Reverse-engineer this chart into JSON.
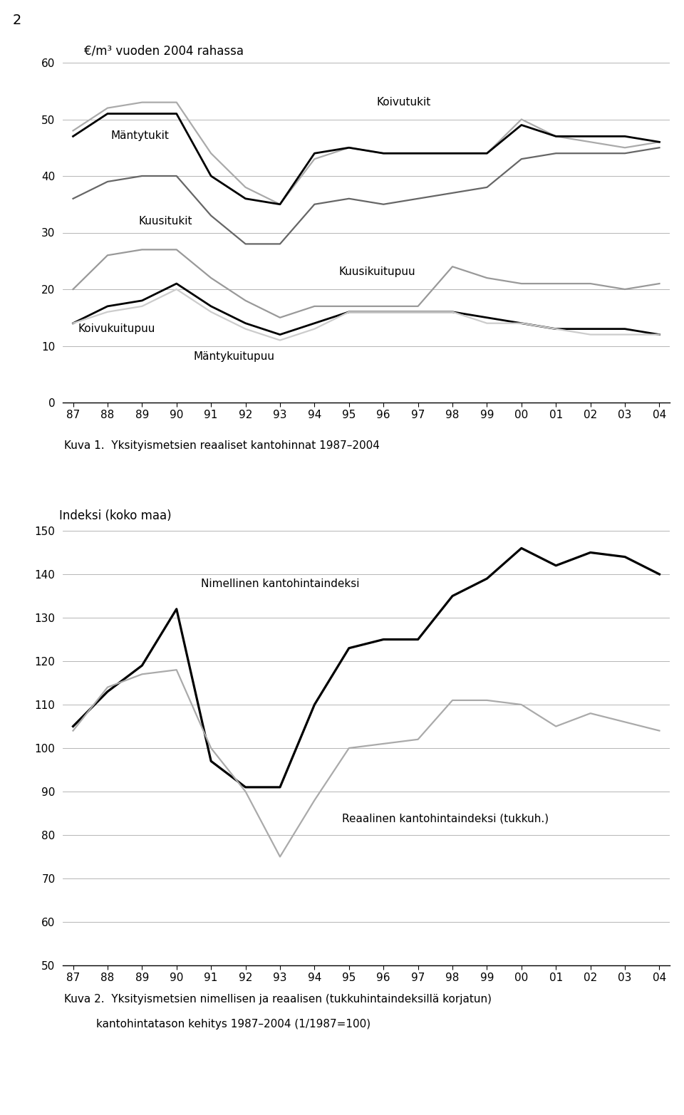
{
  "year_labels": [
    "87",
    "88",
    "89",
    "90",
    "91",
    "92",
    "93",
    "94",
    "95",
    "96",
    "97",
    "98",
    "99",
    "00",
    "01",
    "02",
    "03",
    "04"
  ],
  "chart1_title": "€/m³ vuoden 2004 rahassa",
  "chart1_ylim": [
    0,
    60
  ],
  "chart1_yticks": [
    0,
    10,
    20,
    30,
    40,
    50,
    60
  ],
  "mantytukit": [
    47,
    51,
    51,
    51,
    40,
    36,
    35,
    44,
    45,
    44,
    44,
    44,
    44,
    49,
    47,
    47,
    47,
    46
  ],
  "koivutukit": [
    48,
    52,
    53,
    53,
    44,
    38,
    35,
    43,
    45,
    44,
    44,
    44,
    44,
    50,
    47,
    46,
    45,
    46
  ],
  "kuusitukit": [
    36,
    39,
    40,
    40,
    33,
    28,
    28,
    35,
    36,
    35,
    36,
    37,
    38,
    43,
    44,
    44,
    44,
    45
  ],
  "kuusikuitupuu": [
    20,
    26,
    27,
    27,
    22,
    18,
    15,
    17,
    17,
    17,
    17,
    24,
    22,
    21,
    21,
    21,
    20,
    21
  ],
  "koivukuitupuu": [
    14,
    17,
    18,
    21,
    17,
    14,
    12,
    14,
    16,
    16,
    16,
    16,
    15,
    14,
    13,
    13,
    13,
    12
  ],
  "mantykuitupuu": [
    14,
    16,
    17,
    20,
    16,
    13,
    11,
    13,
    16,
    16,
    16,
    16,
    14,
    14,
    13,
    12,
    12,
    12
  ],
  "mantytukit_color": "#000000",
  "koivutukit_color": "#aaaaaa",
  "kuusitukit_color": "#666666",
  "kuusikuitupuu_color": "#999999",
  "koivukuitupuu_color": "#000000",
  "mantykuitupuu_color": "#cccccc",
  "chart2_ylabel": "Indeksi (koko maa)",
  "chart2_ylim": [
    50,
    150
  ],
  "chart2_yticks": [
    50,
    60,
    70,
    80,
    90,
    100,
    110,
    120,
    130,
    140,
    150
  ],
  "nimellinen": [
    105,
    113,
    119,
    132,
    97,
    91,
    91,
    110,
    123,
    125,
    125,
    135,
    139,
    146,
    142,
    145,
    144,
    140
  ],
  "reaalinen": [
    104,
    114,
    117,
    118,
    100,
    90,
    75,
    88,
    100,
    101,
    102,
    111,
    111,
    110,
    105,
    108,
    106,
    104
  ],
  "nimellinen_color": "#000000",
  "reaalinen_color": "#aaaaaa",
  "caption1": "Kuva 1.  Yksityismetsien reaaliset kantohinnat 1987–2004",
  "caption2_line1": "Kuva 2.  Yksityismetsien nimellisen ja reaalisen (tukkuhintaindeksillä korjatun)",
  "caption2_line2": "kantohintatason kehitys 1987–2004 (1/1987=100)",
  "page_number": "2",
  "bg_color": "#ffffff",
  "grid_color": "#aaaaaa",
  "axis_color": "#000000",
  "label_koivutukit": "Koivutukit",
  "label_mantytukit": "Mäntytukit",
  "label_kuusitukit": "Kuusitukit",
  "label_kuusikuitupuu": "Kuusikuitupuu",
  "label_koivukuitupuu": "Koivukuitupuu",
  "label_mantykuitupuu": "Mäntykuitupuu",
  "label_nimellinen": "Nimellinen kantohintaindeksi",
  "label_reaalinen": "Reaalinen kantohintaindeksi (tukkuh.)"
}
